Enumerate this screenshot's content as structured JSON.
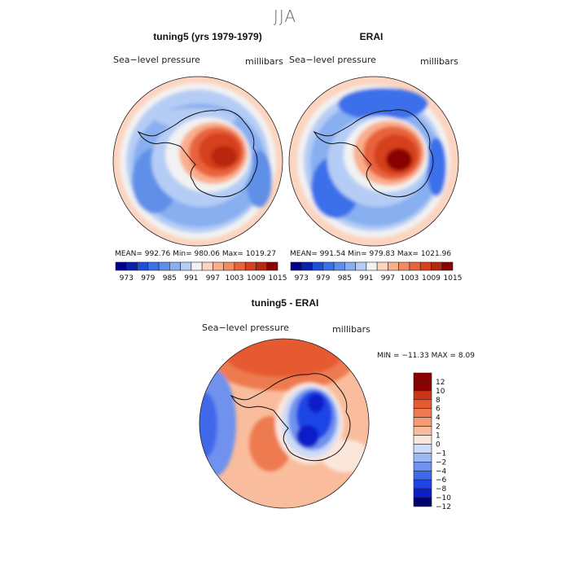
{
  "figure": {
    "season": "JJA"
  },
  "colors": {
    "abs_levels": [
      "#00008b",
      "#0a1fb0",
      "#1f4fd8",
      "#3a70ea",
      "#5e8fe8",
      "#88aff0",
      "#b5cdf5",
      "#f2f2f2",
      "#fcd4c0",
      "#f9ae8c",
      "#f28a63",
      "#e8643d",
      "#d6401f",
      "#b82710",
      "#8b0000"
    ],
    "diff_levels": [
      "#00006e",
      "#0d1ec8",
      "#1f45e6",
      "#3f69ea",
      "#6f92ee",
      "#9db8f4",
      "#ccdcf8",
      "#fbe6dc",
      "#f9bd9d",
      "#f49a74",
      "#ee7a50",
      "#e65a30",
      "#cc3417",
      "#8b0000"
    ]
  },
  "chart_data": [
    {
      "type": "heatmap",
      "projection": "south-polar stereographic",
      "title": "tuning5 (yrs 1979-1979)",
      "field_label": "Sea−level pressure",
      "units": "millibars",
      "stats": {
        "mean": 992.76,
        "min": 980.06,
        "max": 1019.27
      },
      "stats_text": "MEAN=  992.76   Min=  980.06   Max=  1019.27",
      "colorbar": {
        "levels": [
          973,
          976,
          979,
          982,
          985,
          988,
          991,
          994,
          997,
          1000,
          1003,
          1006,
          1009,
          1012,
          1015
        ],
        "tick_labels": [
          "973",
          "979",
          "985",
          "991",
          "997",
          "1003",
          "1009",
          "1015"
        ]
      }
    },
    {
      "type": "heatmap",
      "projection": "south-polar stereographic",
      "title": "ERAI",
      "field_label": "Sea−level pressure",
      "units": "millibars",
      "stats": {
        "mean": 991.54,
        "min": 979.83,
        "max": 1021.96
      },
      "stats_text": "MEAN=  991.54   Min=  979.83   Max=  1021.96",
      "colorbar": {
        "levels": [
          973,
          976,
          979,
          982,
          985,
          988,
          991,
          994,
          997,
          1000,
          1003,
          1006,
          1009,
          1012,
          1015
        ],
        "tick_labels": [
          "973",
          "979",
          "985",
          "991",
          "997",
          "1003",
          "1009",
          "1015"
        ]
      }
    },
    {
      "type": "heatmap",
      "projection": "south-polar stereographic",
      "title": "tuning5 - ERAI",
      "field_label": "Sea−level pressure",
      "units": "millibars",
      "stats": {
        "min": -11.33,
        "max": 8.09
      },
      "stats_text": "MIN = −11.33  MAX =    8.09",
      "colorbar": {
        "orientation": "vertical",
        "levels": [
          12,
          10,
          8,
          6,
          4,
          2,
          1,
          0,
          -1,
          -2,
          -4,
          -6,
          -8,
          -10,
          -12
        ],
        "tick_labels": [
          "12",
          "10",
          "8",
          "6",
          "4",
          "2",
          "1",
          "0",
          "−1",
          "−2",
          "−4",
          "−6",
          "−8",
          "−10",
          "−12"
        ]
      }
    }
  ]
}
